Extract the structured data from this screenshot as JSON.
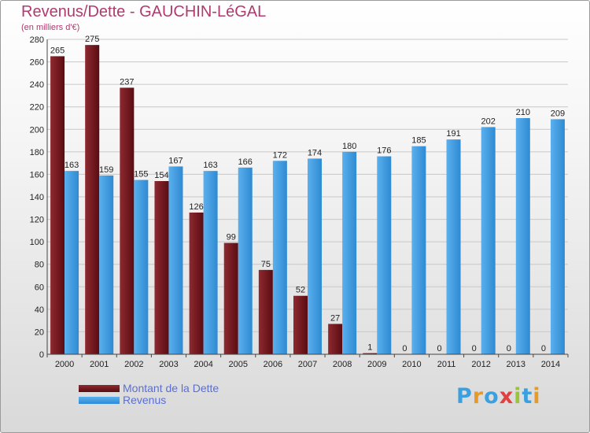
{
  "header": {
    "title": "Revenus/Dette - GAUCHIN-LéGAL",
    "subtitle": "(en milliers d'€)"
  },
  "legend": {
    "items": [
      {
        "label": "Montant de la Dette"
      },
      {
        "label": "Revenus"
      }
    ]
  },
  "colors": {
    "dette": "#7a1a20",
    "dette_dark": "#5a0c12",
    "revenus": "#4aa3e6",
    "revenus_dark": "#2d8bd6",
    "title": "#b03a6e",
    "legend_text": "#5a6fd6"
  },
  "logo": {
    "text": "Proxiti",
    "letter_colors": [
      "#3aa0e0",
      "#e69a2a",
      "#3aa0e0",
      "#e04040",
      "#9bc43a",
      "#3aa0e0",
      "#e69a2a"
    ]
  },
  "chart_data": {
    "type": "bar",
    "title": "Revenus/Dette - GAUCHIN-LéGAL",
    "subtitle": "(en milliers d'€)",
    "categories": [
      "2000",
      "2001",
      "2002",
      "2003",
      "2004",
      "2005",
      "2006",
      "2007",
      "2008",
      "2009",
      "2010",
      "2011",
      "2012",
      "2013",
      "2014"
    ],
    "series": [
      {
        "name": "Montant de la Dette",
        "values": [
          265,
          275,
          237,
          154,
          126,
          99,
          75,
          52,
          27,
          1,
          0,
          0,
          0,
          0,
          0
        ]
      },
      {
        "name": "Revenus",
        "values": [
          163,
          159,
          155,
          167,
          163,
          166,
          172,
          174,
          180,
          176,
          185,
          191,
          202,
          210,
          209
        ]
      }
    ],
    "ylim": [
      0,
      280
    ],
    "yticks": [
      0,
      20,
      40,
      60,
      80,
      100,
      120,
      140,
      160,
      180,
      200,
      220,
      240,
      260,
      280
    ],
    "grid": true,
    "legend_position": "bottom-left"
  }
}
